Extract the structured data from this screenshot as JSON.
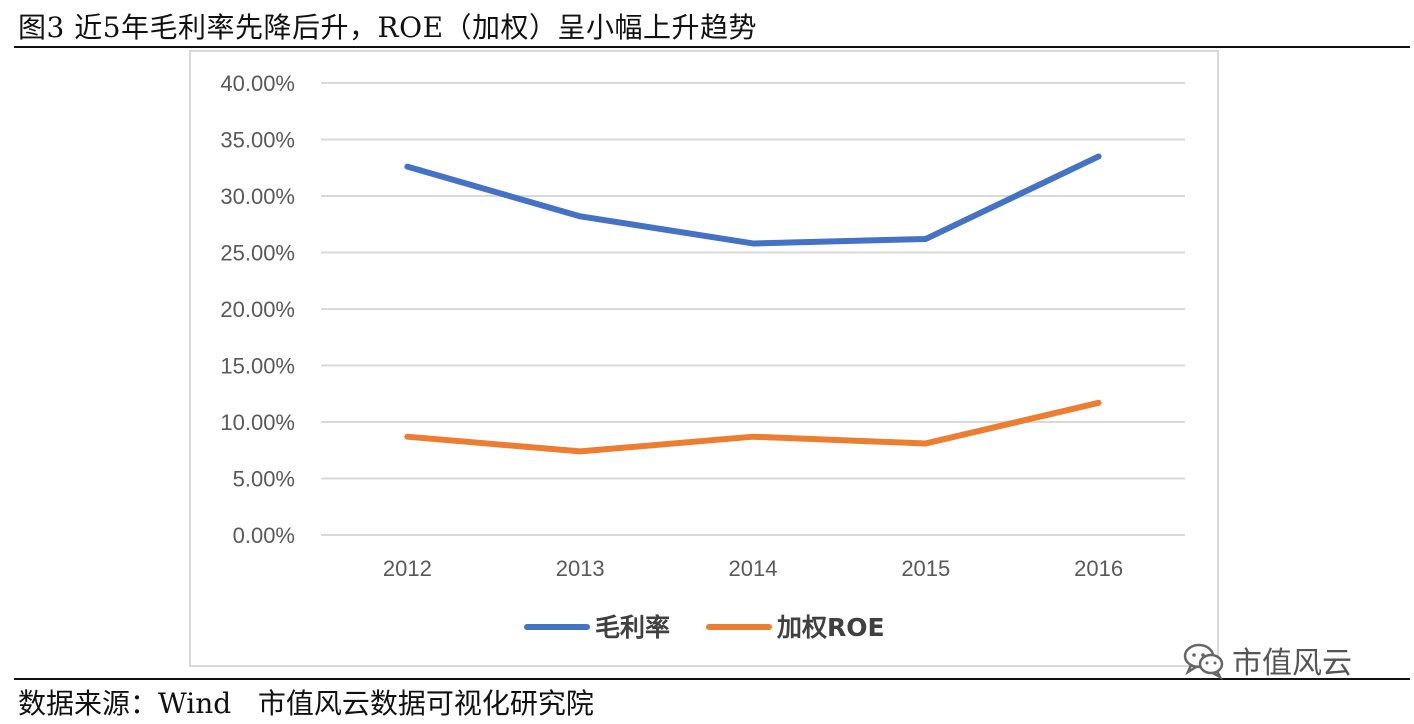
{
  "figure": {
    "title": "图3 近5年毛利率先降后升，ROE（加权）呈小幅上升趋势",
    "source_text": "数据来源：Wind   市值风云数据可视化研究院",
    "watermark_text": "市值风云"
  },
  "chart_data": {
    "type": "line",
    "title": "",
    "xlabel": "",
    "ylabel": "",
    "categories": [
      "2012",
      "2013",
      "2014",
      "2015",
      "2016"
    ],
    "ylim": [
      0,
      40
    ],
    "ytick_values": [
      0,
      5,
      10,
      15,
      20,
      25,
      30,
      35,
      40
    ],
    "ytick_labels": [
      "0.00%",
      "5.00%",
      "10.00%",
      "15.00%",
      "20.00%",
      "25.00%",
      "30.00%",
      "35.00%",
      "40.00%"
    ],
    "grid": true,
    "legend_position": "bottom-center",
    "series": [
      {
        "name": "毛利率",
        "color": "#4472c4",
        "values": [
          32.6,
          28.2,
          25.8,
          26.2,
          33.5
        ]
      },
      {
        "name": "加权ROE",
        "color": "#ed7d31",
        "values": [
          8.7,
          7.4,
          8.7,
          8.1,
          11.7
        ]
      }
    ]
  }
}
